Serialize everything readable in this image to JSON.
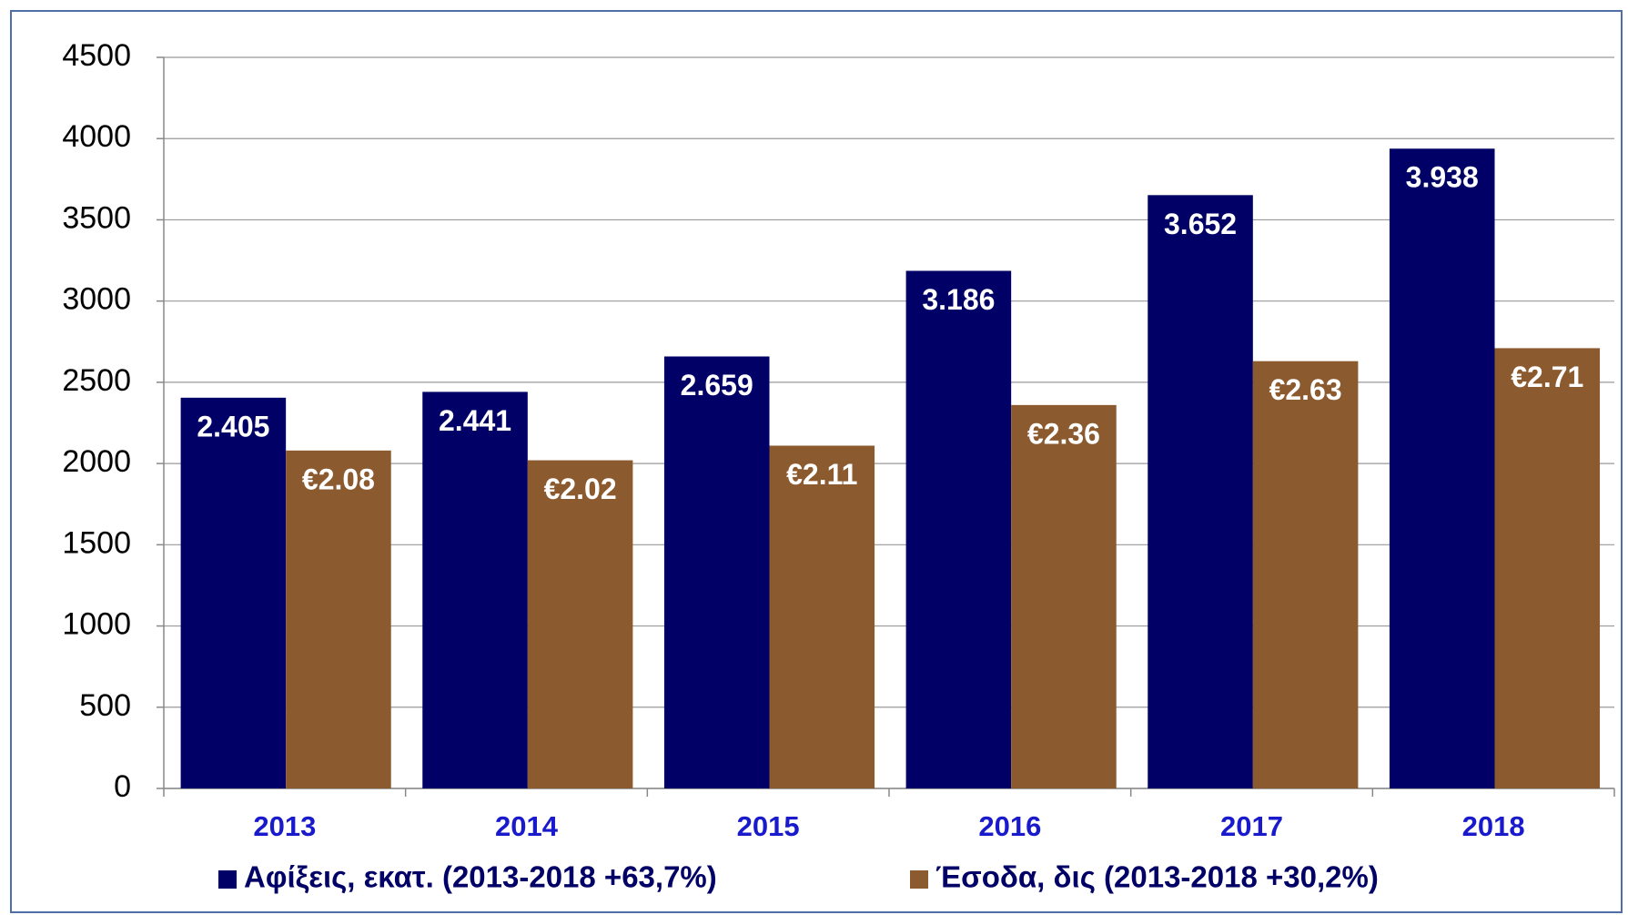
{
  "chart_data": {
    "type": "bar",
    "categories": [
      "2013",
      "2014",
      "2015",
      "2016",
      "2017",
      "2018"
    ],
    "series": [
      {
        "name": "Αφίξεις, εκατ. (2013-2018 +63,7%)",
        "color": "#000066",
        "values": [
          2405,
          2441,
          2659,
          3186,
          3652,
          3938
        ],
        "value_labels": [
          "2.405",
          "2.441",
          "2.659",
          "3.186",
          "3.652",
          "3.938"
        ]
      },
      {
        "name": "Έσοδα, δις (2013-2018 +30,2%)",
        "color": "#8b5a2e",
        "values": [
          2080,
          2020,
          2110,
          2360,
          2630,
          2710
        ],
        "value_labels": [
          "€2.08",
          "€2.02",
          "€2.11",
          "€2.36",
          "€2.63",
          "€2.71"
        ]
      }
    ],
    "ylim": [
      0,
      4500
    ],
    "yticks": [
      0,
      500,
      1000,
      1500,
      2000,
      2500,
      3000,
      3500,
      4000,
      4500
    ],
    "grid": true,
    "legend": "bottom"
  }
}
